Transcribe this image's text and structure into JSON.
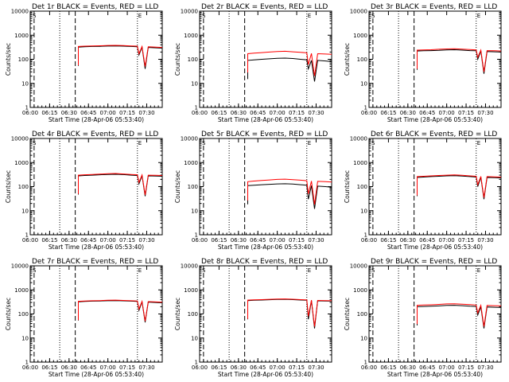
{
  "chart_data": [
    {
      "type": "line",
      "title": "Det 1r BLACK = Events, RED = LLD",
      "xlabel": "Start Time (28-Apr-06 05:53:40)",
      "ylabel": "Counts/sec",
      "x": [
        0.62,
        0.7,
        0.8,
        0.9,
        1.0,
        1.1,
        1.2,
        1.3,
        1.38,
        1.4,
        1.44,
        1.48,
        1.52,
        1.62,
        1.7
      ],
      "series": [
        {
          "color": "#000000",
          "values": [
            320,
            330,
            340,
            345,
            355,
            360,
            350,
            340,
            330,
            150,
            320,
            40,
            310,
            300,
            290
          ]
        },
        {
          "color": "#ff0000",
          "values": [
            340,
            350,
            360,
            365,
            375,
            380,
            370,
            360,
            350,
            170,
            340,
            50,
            330,
            320,
            310
          ]
        }
      ]
    },
    {
      "type": "line",
      "title": "Det 2r BLACK = Events, RED = LLD",
      "xlabel": "Start Time (28-Apr-06 05:53:40)",
      "ylabel": "Counts/sec",
      "x": [
        0.62,
        0.7,
        0.8,
        0.9,
        1.0,
        1.1,
        1.2,
        1.3,
        1.38,
        1.4,
        1.44,
        1.48,
        1.52,
        1.62,
        1.7
      ],
      "series": [
        {
          "color": "#000000",
          "values": [
            90,
            95,
            100,
            105,
            110,
            112,
            108,
            100,
            95,
            40,
            90,
            12,
            90,
            85,
            80
          ]
        },
        {
          "color": "#ff0000",
          "values": [
            170,
            180,
            190,
            200,
            210,
            215,
            205,
            195,
            185,
            60,
            175,
            20,
            170,
            165,
            160
          ]
        }
      ]
    },
    {
      "type": "line",
      "title": "Det 3r BLACK = Events, RED = LLD",
      "xlabel": "Start Time (28-Apr-06 05:53:40)",
      "ylabel": "Counts/sec",
      "x": [
        0.62,
        0.7,
        0.8,
        0.9,
        1.0,
        1.1,
        1.2,
        1.3,
        1.38,
        1.4,
        1.44,
        1.48,
        1.52,
        1.62,
        1.7
      ],
      "series": [
        {
          "color": "#000000",
          "values": [
            220,
            225,
            230,
            235,
            245,
            250,
            240,
            230,
            225,
            100,
            220,
            25,
            210,
            205,
            200
          ]
        },
        {
          "color": "#ff0000",
          "values": [
            240,
            245,
            250,
            260,
            270,
            275,
            265,
            255,
            245,
            120,
            240,
            30,
            230,
            225,
            220
          ]
        }
      ]
    },
    {
      "type": "line",
      "title": "Det 4r BLACK = Events, RED = LLD",
      "xlabel": "Start Time (28-Apr-06 05:53:40)",
      "ylabel": "Counts/sec",
      "x": [
        0.62,
        0.7,
        0.8,
        0.9,
        1.0,
        1.1,
        1.2,
        1.3,
        1.38,
        1.4,
        1.44,
        1.48,
        1.52,
        1.62,
        1.7
      ],
      "series": [
        {
          "color": "#000000",
          "values": [
            280,
            290,
            300,
            310,
            320,
            325,
            315,
            300,
            290,
            130,
            285,
            40,
            280,
            275,
            270
          ]
        },
        {
          "color": "#ff0000",
          "values": [
            300,
            310,
            320,
            330,
            345,
            350,
            335,
            320,
            310,
            150,
            305,
            45,
            300,
            295,
            290
          ]
        }
      ]
    },
    {
      "type": "line",
      "title": "Det 5r BLACK = Events, RED = LLD",
      "xlabel": "Start Time (28-Apr-06 05:53:40)",
      "ylabel": "Counts/sec",
      "x": [
        0.62,
        0.7,
        0.8,
        0.9,
        1.0,
        1.1,
        1.2,
        1.3,
        1.38,
        1.4,
        1.44,
        1.48,
        1.52,
        1.62,
        1.7
      ],
      "series": [
        {
          "color": "#000000",
          "values": [
            110,
            115,
            120,
            125,
            130,
            132,
            128,
            120,
            115,
            30,
            110,
            12,
            105,
            100,
            95
          ]
        },
        {
          "color": "#ff0000",
          "values": [
            160,
            170,
            180,
            190,
            200,
            205,
            195,
            185,
            175,
            50,
            170,
            18,
            165,
            160,
            155
          ]
        }
      ]
    },
    {
      "type": "line",
      "title": "Det 6r BLACK = Events, RED = LLD",
      "xlabel": "Start Time (28-Apr-06 05:53:40)",
      "ylabel": "Counts/sec",
      "x": [
        0.62,
        0.7,
        0.8,
        0.9,
        1.0,
        1.1,
        1.2,
        1.3,
        1.38,
        1.4,
        1.44,
        1.48,
        1.52,
        1.62,
        1.7
      ],
      "series": [
        {
          "color": "#000000",
          "values": [
            240,
            250,
            260,
            270,
            280,
            285,
            275,
            260,
            250,
            100,
            245,
            30,
            240,
            235,
            230
          ]
        },
        {
          "color": "#ff0000",
          "values": [
            260,
            270,
            280,
            290,
            300,
            305,
            295,
            280,
            270,
            120,
            265,
            35,
            260,
            255,
            250
          ]
        }
      ]
    },
    {
      "type": "line",
      "title": "Det 7r BLACK = Events, RED = LLD",
      "xlabel": "Start Time (28-Apr-06 05:53:40)",
      "ylabel": "Counts/sec",
      "x": [
        0.62,
        0.7,
        0.8,
        0.9,
        1.0,
        1.1,
        1.2,
        1.3,
        1.38,
        1.4,
        1.44,
        1.48,
        1.52,
        1.62,
        1.7
      ],
      "series": [
        {
          "color": "#000000",
          "values": [
            320,
            330,
            340,
            345,
            355,
            360,
            350,
            340,
            330,
            140,
            320,
            45,
            310,
            300,
            290
          ]
        },
        {
          "color": "#ff0000",
          "values": [
            335,
            345,
            355,
            360,
            370,
            375,
            365,
            355,
            345,
            160,
            335,
            50,
            325,
            315,
            305
          ]
        }
      ]
    },
    {
      "type": "line",
      "title": "Det 8r BLACK = Events, RED = LLD",
      "xlabel": "Start Time (28-Apr-06 05:53:40)",
      "ylabel": "Counts/sec",
      "x": [
        0.62,
        0.7,
        0.8,
        0.9,
        1.0,
        1.1,
        1.2,
        1.3,
        1.38,
        1.4,
        1.44,
        1.48,
        1.52,
        1.62,
        1.7
      ],
      "series": [
        {
          "color": "#000000",
          "values": [
            360,
            370,
            380,
            390,
            400,
            405,
            395,
            380,
            370,
            60,
            360,
            25,
            350,
            345,
            340
          ]
        },
        {
          "color": "#ff0000",
          "values": [
            375,
            385,
            395,
            405,
            415,
            420,
            410,
            395,
            385,
            80,
            375,
            30,
            365,
            360,
            355
          ]
        }
      ]
    },
    {
      "type": "line",
      "title": "Det 9r BLACK = Events, RED = LLD",
      "xlabel": "Start Time (28-Apr-06 05:53:40)",
      "ylabel": "Counts/sec",
      "x": [
        0.62,
        0.7,
        0.8,
        0.9,
        1.0,
        1.1,
        1.2,
        1.3,
        1.38,
        1.4,
        1.44,
        1.48,
        1.52,
        1.62,
        1.7
      ],
      "series": [
        {
          "color": "#000000",
          "values": [
            200,
            205,
            210,
            215,
            225,
            230,
            220,
            210,
            205,
            90,
            200,
            25,
            195,
            190,
            185
          ]
        },
        {
          "color": "#ff0000",
          "values": [
            230,
            235,
            240,
            250,
            260,
            265,
            255,
            245,
            235,
            110,
            230,
            30,
            225,
            220,
            215
          ]
        }
      ]
    }
  ],
  "axes": {
    "xlim": [
      0,
      1.7
    ],
    "ylim": [
      1,
      10000
    ],
    "yscale": "log",
    "x_ticks": [
      {
        "v": 0,
        "label": "06:00"
      },
      {
        "v": 0.25,
        "label": "06:15"
      },
      {
        "v": 0.5,
        "label": "06:30"
      },
      {
        "v": 0.75,
        "label": "06:45"
      },
      {
        "v": 1.0,
        "label": "07:00"
      },
      {
        "v": 1.25,
        "label": "07:15"
      },
      {
        "v": 1.5,
        "label": "07:30"
      }
    ],
    "y_ticks": [
      {
        "v": 1,
        "label": "1"
      },
      {
        "v": 10,
        "label": "10"
      },
      {
        "v": 100,
        "label": "100"
      },
      {
        "v": 1000,
        "label": "1000"
      },
      {
        "v": 10000,
        "label": "10000"
      }
    ],
    "dotted_lines": [
      0.38,
      1.38
    ],
    "dashed_lines": [
      0.05,
      0.58
    ],
    "markers": [
      {
        "x": 0.02,
        "label": "S"
      },
      {
        "x": 1.38,
        "label": "E"
      }
    ]
  }
}
